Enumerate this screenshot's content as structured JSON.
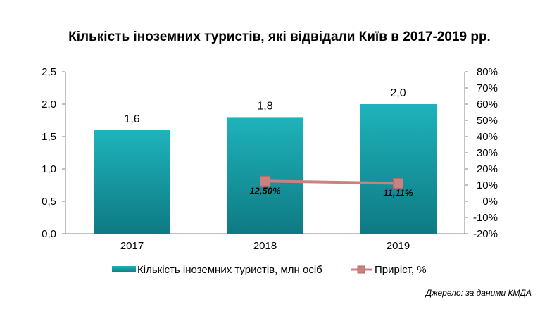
{
  "chart_data": {
    "type": "bar",
    "title": "Кількість іноземних туристів, які відвідали Київ в 2017-2019 рр.",
    "categories": [
      "2017",
      "2018",
      "2019"
    ],
    "series": [
      {
        "name": "Кількість іноземних туристів, млн осіб",
        "type": "bar",
        "axis": "left",
        "values": [
          1.6,
          1.8,
          2.0
        ],
        "labels": [
          "1,6",
          "1,8",
          "2,0"
        ],
        "color": "#1aa0a8"
      },
      {
        "name": "Приріст, %",
        "type": "line",
        "axis": "right",
        "x": [
          "2018",
          "2019"
        ],
        "values": [
          12.5,
          11.11
        ],
        "labels": [
          "12,50%",
          "11,11%"
        ],
        "color": "#c8837e"
      }
    ],
    "y_left": {
      "ylim": [
        0,
        2.5
      ],
      "ticks": [
        0,
        0.5,
        1.0,
        1.5,
        2.0,
        2.5
      ],
      "tick_labels": [
        "0,0",
        "0,5",
        "1,0",
        "1,5",
        "2,0",
        "2,5"
      ]
    },
    "y_right": {
      "ylim": [
        -20,
        80
      ],
      "ticks": [
        -20,
        -10,
        0,
        10,
        20,
        30,
        40,
        50,
        60,
        70,
        80
      ],
      "tick_labels": [
        "-20%",
        "-10%",
        "0%",
        "10%",
        "20%",
        "30%",
        "40%",
        "50%",
        "60%",
        "70%",
        "80%"
      ]
    },
    "grid": false,
    "legend_position": "bottom",
    "source_note": "Джерело: за даними КМДА"
  }
}
